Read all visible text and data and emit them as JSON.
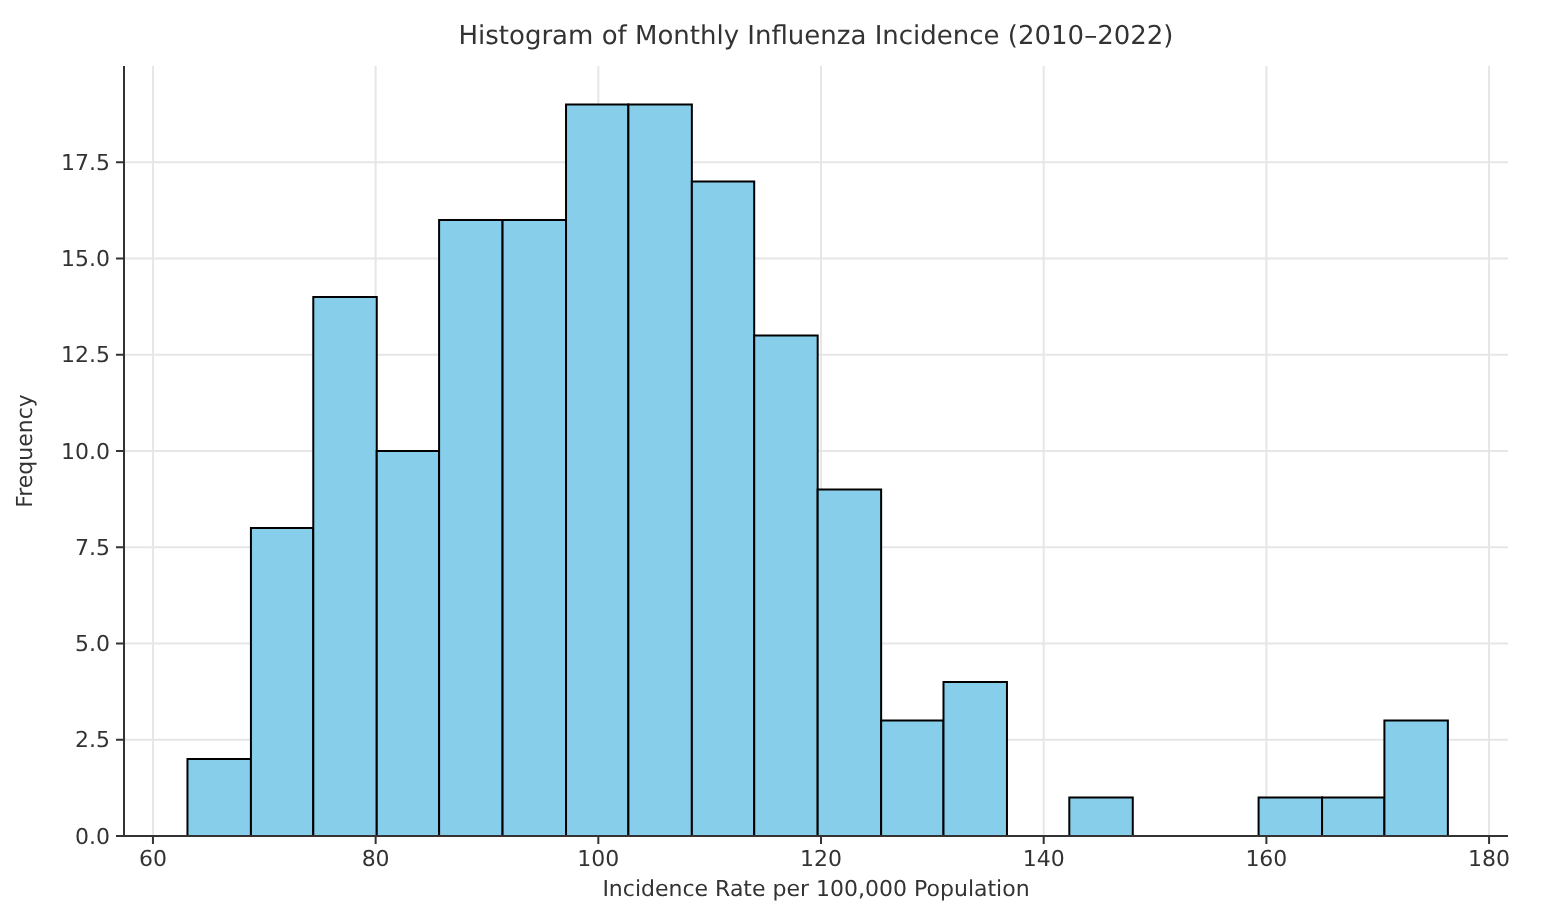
{
  "chart_data": {
    "type": "histogram",
    "title": "Histogram of Monthly Influenza Incidence (2010–2022)",
    "xlabel": "Incidence Rate per 100,000 Population",
    "ylabel": "Frequency",
    "bins": [
      63.1,
      68.8,
      74.4,
      80.1,
      85.7,
      91.4,
      97.1,
      102.7,
      108.4,
      114.0,
      119.7,
      125.4,
      131.0,
      136.7,
      142.3,
      148.0,
      159.3,
      165.0,
      170.6,
      176.3
    ],
    "values": [
      2,
      8,
      14,
      10,
      16,
      16,
      19,
      19,
      17,
      13,
      9,
      3,
      4,
      0,
      1,
      0,
      1,
      1,
      3
    ],
    "color": "#87ceeb",
    "xlim": [
      57.4,
      181.7
    ],
    "xticks": [
      60,
      80,
      100,
      120,
      140,
      160,
      180
    ],
    "ylim": [
      0,
      20
    ],
    "yticks": [
      {
        "value": 0,
        "label": "0.0"
      },
      {
        "value": 2.5,
        "label": "2.5"
      },
      {
        "value": 5,
        "label": "5.0"
      },
      {
        "value": 7.5,
        "label": "7.5"
      },
      {
        "value": 10,
        "label": "10.0"
      },
      {
        "value": 12.5,
        "label": "12.5"
      },
      {
        "value": 15,
        "label": "15.0"
      },
      {
        "value": 17.5,
        "label": "17.5"
      }
    ],
    "grid": true
  }
}
